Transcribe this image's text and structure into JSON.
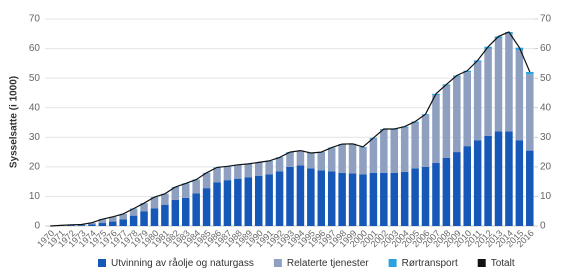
{
  "chart_data": {
    "type": "bar",
    "stacked": true,
    "y_label": "Sysselsatte (i 1000)",
    "categories": [
      "1970",
      "1971",
      "1972",
      "1973",
      "1974",
      "1975",
      "1976",
      "1977",
      "1978",
      "1979",
      "1980",
      "1981",
      "1982",
      "1983",
      "1984",
      "1985",
      "1986",
      "1987",
      "1988",
      "1989",
      "1990",
      "1991",
      "1992",
      "1993",
      "1994",
      "1995",
      "1996",
      "1997",
      "1998",
      "1999",
      "2000",
      "2001",
      "2002",
      "2003",
      "2004",
      "2005",
      "2006",
      "2007",
      "2008",
      "2009",
      "2010",
      "2011",
      "2012",
      "2013",
      "2014",
      "2015",
      "2016"
    ],
    "series": [
      {
        "name": "Utvinning av råolje og naturgass",
        "color": "#1558b8",
        "kind": "bar",
        "values": [
          0,
          0.1,
          0.2,
          0.3,
          0.6,
          1,
          1.5,
          2.2,
          3.5,
          5,
          6,
          7.2,
          8.8,
          9.5,
          11,
          12.8,
          14.8,
          15.5,
          16,
          16.5,
          17,
          17.5,
          18.5,
          20,
          20.5,
          19.5,
          18.8,
          18.5,
          18,
          17.8,
          17.5,
          18,
          18,
          18,
          18.3,
          19.5,
          20,
          21.3,
          23,
          25,
          27,
          29,
          30.5,
          32,
          32,
          29,
          25.5
        ]
      },
      {
        "name": "Relaterte tjenester",
        "color": "#8e9fc0",
        "kind": "bar",
        "values": [
          0,
          0.1,
          0.2,
          0.2,
          0.5,
          1.2,
          1.5,
          1.8,
          2.2,
          2.5,
          3.6,
          3.5,
          4.2,
          4.7,
          4.5,
          5,
          4.8,
          4.5,
          4.5,
          4.3,
          4.3,
          4.3,
          4.5,
          4.8,
          4.8,
          5,
          6,
          7.8,
          9.5,
          9.8,
          9,
          11.5,
          14.5,
          14.5,
          15,
          15.5,
          17.5,
          23,
          24.5,
          25.5,
          25,
          26.5,
          29.5,
          31.5,
          33,
          30.5,
          25.8
        ]
      },
      {
        "name": "Rørtransport",
        "color": "#2aa2e0",
        "kind": "bar",
        "values": [
          0,
          0,
          0,
          0,
          0,
          0.1,
          0.1,
          0.1,
          0.2,
          0.2,
          0.2,
          0.2,
          0.2,
          0.2,
          0.2,
          0.2,
          0.2,
          0.2,
          0.2,
          0.2,
          0.2,
          0.2,
          0.2,
          0.2,
          0.2,
          0.2,
          0.2,
          0.2,
          0.2,
          0.2,
          0.2,
          0.3,
          0.3,
          0.3,
          0.3,
          0.3,
          0.3,
          0.4,
          0.4,
          0.4,
          0.5,
          0.5,
          0.6,
          0.6,
          0.6,
          0.8,
          0.8
        ]
      },
      {
        "name": "Totalt",
        "color": "#111111",
        "kind": "line",
        "values": [
          0,
          0.2,
          0.4,
          0.5,
          1.1,
          2.3,
          3.1,
          4.1,
          5.9,
          7.7,
          9.8,
          10.9,
          13.2,
          14.4,
          15.7,
          18,
          19.8,
          20.2,
          20.7,
          21,
          21.5,
          22,
          23.2,
          25,
          25.5,
          24.7,
          25,
          26.5,
          27.7,
          27.8,
          26.7,
          29.8,
          32.8,
          32.8,
          33.6,
          35.3,
          37.8,
          44.7,
          47.9,
          50.9,
          52.5,
          56,
          60.6,
          64.1,
          65.6,
          60.3,
          52.1
        ]
      }
    ],
    "ylim": [
      0,
      70
    ],
    "yticks": [
      0,
      10,
      20,
      30,
      40,
      50,
      60,
      70
    ],
    "y2lim": [
      0,
      70
    ],
    "y2ticks": [
      0,
      10,
      20,
      30,
      40,
      50,
      60,
      70
    ],
    "grid": true,
    "legend": "bottom"
  }
}
